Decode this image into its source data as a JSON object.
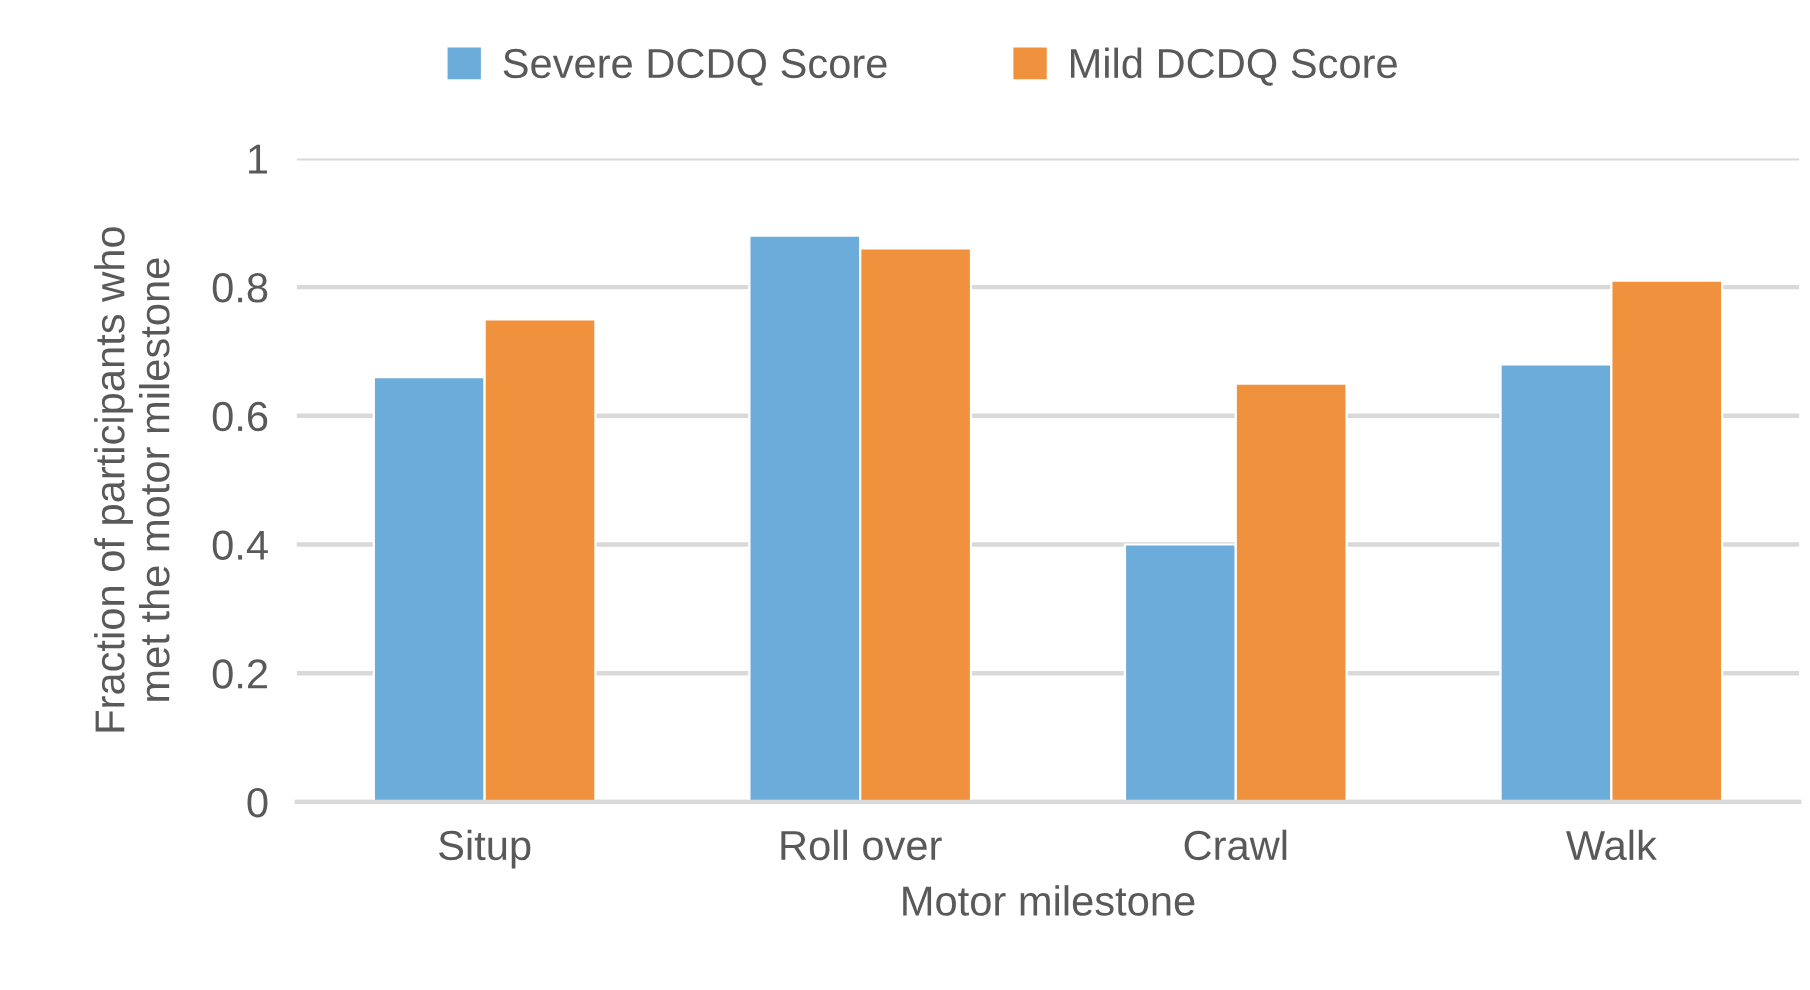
{
  "chart_data": {
    "type": "bar",
    "xlabel": "Motor milestone",
    "ylabel": "Fraction of participants who\nmet the motor milestone",
    "categories": [
      "Situp",
      "Roll over",
      "Crawl",
      "Walk"
    ],
    "series": [
      {
        "name": "Severe DCDQ Score",
        "color": "#6cacdb",
        "values": [
          0.66,
          0.88,
          0.4,
          0.68
        ]
      },
      {
        "name": "Mild DCDQ Score",
        "color": "#ef913d",
        "values": [
          0.75,
          0.86,
          0.65,
          0.81
        ]
      }
    ],
    "ylim": [
      0,
      1
    ],
    "yticks": [
      0,
      0.2,
      0.4,
      0.6,
      0.8,
      1
    ],
    "grid": "y",
    "legend": "top"
  }
}
